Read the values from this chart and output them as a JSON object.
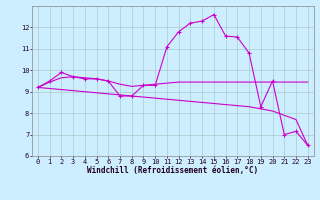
{
  "xlabel": "Windchill (Refroidissement éolien,°C)",
  "background_color": "#cceeff",
  "grid_color": "#aacccc",
  "line_color": "#cc00cc",
  "xlim": [
    -0.5,
    23.5
  ],
  "ylim": [
    6,
    13
  ],
  "yticks": [
    6,
    7,
    8,
    9,
    10,
    11,
    12
  ],
  "xticks": [
    0,
    1,
    2,
    3,
    4,
    5,
    6,
    7,
    8,
    9,
    10,
    11,
    12,
    13,
    14,
    15,
    16,
    17,
    18,
    19,
    20,
    21,
    22,
    23
  ],
  "hours": [
    0,
    1,
    2,
    3,
    4,
    5,
    6,
    7,
    8,
    9,
    10,
    11,
    12,
    13,
    14,
    15,
    16,
    17,
    18,
    19,
    20,
    21,
    22,
    23
  ],
  "windchill": [
    9.2,
    9.5,
    9.9,
    9.7,
    9.6,
    9.6,
    9.5,
    8.8,
    8.8,
    9.3,
    9.3,
    11.1,
    11.8,
    12.2,
    12.3,
    12.6,
    11.6,
    11.55,
    10.8,
    8.3,
    9.5,
    7.0,
    7.15,
    6.5
  ],
  "smooth": [
    9.2,
    9.45,
    9.65,
    9.7,
    9.65,
    9.6,
    9.5,
    9.35,
    9.25,
    9.3,
    9.35,
    9.4,
    9.45,
    9.45,
    9.45,
    9.45,
    9.45,
    9.45,
    9.45,
    9.45,
    9.45,
    9.45,
    9.45,
    9.45
  ],
  "trend": [
    9.2,
    9.15,
    9.1,
    9.05,
    9.0,
    8.95,
    8.9,
    8.85,
    8.8,
    8.75,
    8.7,
    8.65,
    8.6,
    8.55,
    8.5,
    8.45,
    8.4,
    8.35,
    8.3,
    8.2,
    8.1,
    7.9,
    7.7,
    6.5
  ],
  "xlabel_fontsize": 5.5,
  "tick_fontsize": 5.0,
  "linewidth": 0.8,
  "marker_size": 3
}
